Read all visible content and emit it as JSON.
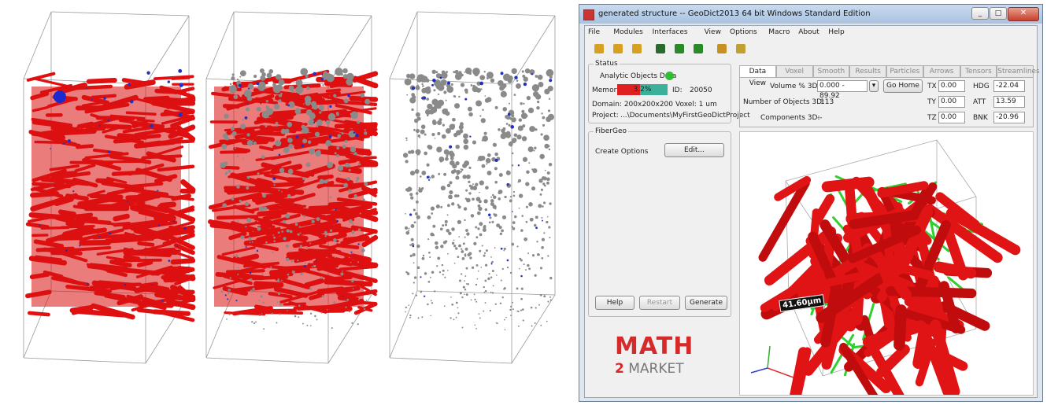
{
  "window": {
    "title": "generated structure -- GeoDict2013 64 bit Windows Standard Edition",
    "menu": [
      "File",
      "Modules",
      "Interfaces",
      "View",
      "Options",
      "Macro",
      "About",
      "Help"
    ]
  },
  "status": {
    "heading": "Status",
    "analytic_label": "Analytic Objects Data",
    "memory_label": "Memory",
    "memory_value": "3.2%",
    "id_label": "ID:",
    "id_value": "20050",
    "domain": "Domain: 200x200x200",
    "voxel": "Voxel: 1 um",
    "project_label": "Project:",
    "project_value": "...\\Documents\\MyFirstGeoDictProject"
  },
  "fibergeo": {
    "heading": "FiberGeo",
    "create_options": "Create Options",
    "edit": "Edit...",
    "help": "Help",
    "restart": "Restart",
    "generate": "Generate"
  },
  "data_view": {
    "tabs": [
      "Data View",
      "Voxel",
      "Smooth",
      "Results",
      "Particles",
      "Arrows",
      "Tensors",
      "Streamlines"
    ],
    "volume_label": "Volume % 3D:",
    "volume_value": "0.000 - 89.92",
    "go_home": "Go Home",
    "objects_label": "Number of Objects 3D:",
    "objects_value": "113",
    "components_label": "Components 3D:",
    "components_value": "--",
    "tx_label": "TX",
    "tx_value": "0.00",
    "ty_label": "TY",
    "ty_value": "0.00",
    "tz_label": "TZ",
    "tz_value": "0.00",
    "hdg_label": "HDG",
    "hdg_value": "-22.04",
    "att_label": "ATT",
    "att_value": "13.59",
    "bnk_label": "BNK",
    "bnk_value": "-20.96"
  },
  "viewer": {
    "scale_label": "41.60µm"
  },
  "logo": {
    "line1": "MATH",
    "number": "2",
    "word": "MARKET"
  }
}
